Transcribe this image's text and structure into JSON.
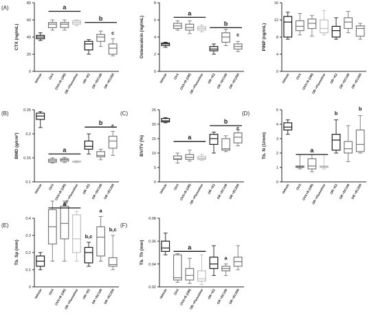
{
  "colors": {
    "dark": "#1a1a1a",
    "mid": "#777777",
    "light": "#bdbdbd",
    "axis": "#222222"
  },
  "chart_data": [
    {
      "id": "A1",
      "panel_label": "(A)",
      "type": "box",
      "ylabel": "CTX (ng/mL)",
      "ylim": [
        0,
        80
      ],
      "yticks": [
        0,
        20,
        40,
        60,
        80
      ],
      "categories": [
        "Vehicle",
        "OVX",
        "OVX+R (OR)",
        "OR +Fluoxetine",
        "OR +E2",
        "OR +EC100",
        "OR +EC200"
      ],
      "shades": [
        "dark",
        "mid",
        "mid",
        "light",
        "dark",
        "mid",
        "mid"
      ],
      "boxes": [
        [
          36,
          38,
          40,
          42,
          45
        ],
        [
          48,
          51,
          55,
          57,
          60
        ],
        [
          48,
          51,
          55,
          57,
          60
        ],
        [
          53,
          55,
          57,
          59,
          60
        ],
        [
          20,
          25,
          32,
          35,
          37
        ],
        [
          29,
          35,
          40,
          43,
          47
        ],
        [
          18,
          20,
          27,
          32,
          38
        ]
      ],
      "annotations": [
        {
          "text": "a",
          "x1": 1,
          "x2": 3,
          "y": 70
        },
        {
          "text": "b",
          "x1": 4,
          "x2": 6,
          "y": 57
        },
        {
          "text": "c",
          "x": 6,
          "y": 42
        }
      ]
    },
    {
      "id": "A2",
      "type": "box",
      "ylabel": "Osteocalcin (ng/mL)",
      "ylim": [
        0,
        8
      ],
      "yticks": [
        0,
        2,
        4,
        6,
        8
      ],
      "categories": [
        "Vehicle",
        "OVX",
        "OVX+R (OR)",
        "OR +Fluoxetine",
        "OR +E2",
        "OR +EC100",
        "OR +EC200"
      ],
      "shades": [
        "dark",
        "mid",
        "mid",
        "light",
        "dark",
        "mid",
        "mid"
      ],
      "boxes": [
        [
          2.8,
          3.0,
          3.2,
          3.3,
          3.4
        ],
        [
          4.8,
          5.0,
          5.3,
          5.6,
          5.9
        ],
        [
          4.4,
          4.8,
          5.1,
          5.5,
          5.9
        ],
        [
          4.6,
          4.8,
          5.0,
          5.2,
          5.4
        ],
        [
          2.0,
          2.4,
          2.6,
          2.9,
          3.2
        ],
        [
          3.0,
          3.4,
          4.0,
          4.5,
          4.9
        ],
        [
          2.3,
          2.6,
          2.9,
          3.2,
          3.5
        ]
      ],
      "annotations": [
        {
          "text": "a",
          "x1": 1,
          "x2": 3,
          "y": 6.3
        },
        {
          "text": "b",
          "x1": 4,
          "x2": 6,
          "y": 5.1
        },
        {
          "text": "c",
          "x": 6,
          "y": 4.0
        }
      ]
    },
    {
      "id": "A3",
      "type": "box",
      "ylabel": "PINP (ng/mL)",
      "ylim": [
        0,
        16
      ],
      "yticks": [
        0,
        4,
        8,
        12,
        16
      ],
      "categories": [
        "Vehicle",
        "OVX",
        "OVX+R (OR)",
        "OR +Fluoxetine",
        "OR +E2",
        "OR +EC100",
        "OR +EC200"
      ],
      "shades": [
        "dark",
        "mid",
        "mid",
        "light",
        "dark",
        "mid",
        "mid"
      ],
      "boxes": [
        [
          7.5,
          8.0,
          11.5,
          12.8,
          13.8
        ],
        [
          8.5,
          9.5,
          10.5,
          11.8,
          13.5
        ],
        [
          8.2,
          10.0,
          11.2,
          12.2,
          13.0
        ],
        [
          8.5,
          9.0,
          10.0,
          12.0,
          14.2
        ],
        [
          7.5,
          8.0,
          9.5,
          10.5,
          12.5
        ],
        [
          9.0,
          10.0,
          11.5,
          12.5,
          14.0
        ],
        [
          7.5,
          8.2,
          10.0,
          10.6,
          11.2
        ]
      ],
      "annotations": []
    },
    {
      "id": "B",
      "panel_label": "(B)",
      "type": "box",
      "ylabel": "BMD (g/cm²)",
      "ylim": [
        0.1,
        0.25
      ],
      "yticks": [
        0.1,
        0.15,
        0.2,
        0.25
      ],
      "categories": [
        "Vehicle",
        "OVX",
        "OVX+R (OR)",
        "OR +Fluoxetine",
        "OR +E2",
        "OR +EC100",
        "OR +EC200"
      ],
      "shades": [
        "dark",
        "mid",
        "mid",
        "light",
        "dark",
        "mid",
        "mid"
      ],
      "boxes": [
        [
          0.213,
          0.23,
          0.237,
          0.243,
          0.246
        ],
        [
          0.139,
          0.141,
          0.144,
          0.147,
          0.15
        ],
        [
          0.14,
          0.143,
          0.146,
          0.148,
          0.151
        ],
        [
          0.14,
          0.141,
          0.142,
          0.143,
          0.144
        ],
        [
          0.158,
          0.168,
          0.174,
          0.185,
          0.2
        ],
        [
          0.146,
          0.152,
          0.155,
          0.163,
          0.168
        ],
        [
          0.155,
          0.17,
          0.185,
          0.195,
          0.205
        ]
      ],
      "annotations": [
        {
          "text": "a",
          "x1": 1,
          "x2": 3,
          "y": 0.158
        },
        {
          "text": "b",
          "x1": 4,
          "x2": 6,
          "y": 0.214
        },
        {
          "text": "c",
          "x": 6,
          "y": 0.212
        }
      ]
    },
    {
      "id": "C",
      "panel_label": "(C)",
      "type": "box",
      "ylabel": "BV/TV (%)",
      "ylim": [
        0,
        25
      ],
      "yticks": [
        0,
        5,
        10,
        15,
        20,
        25
      ],
      "categories": [
        "Vehicle",
        "OVX",
        "OVX+R (OR)",
        "OR +Fluoxetine",
        "OR +E2",
        "OR +EC100",
        "OR +EC200"
      ],
      "shades": [
        "dark",
        "mid",
        "mid",
        "light",
        "dark",
        "mid",
        "mid"
      ],
      "boxes": [
        [
          20.5,
          20.8,
          21.2,
          22.0,
          22.3
        ],
        [
          6.5,
          7.8,
          8.0,
          9.0,
          10.0
        ],
        [
          7.2,
          7.8,
          8.5,
          9.5,
          11.0
        ],
        [
          7.5,
          7.8,
          8.2,
          8.8,
          9.5
        ],
        [
          10.0,
          13.0,
          15.0,
          16.5,
          17.3
        ],
        [
          10.5,
          11.0,
          11.5,
          15.0,
          16.0
        ],
        [
          12.5,
          13.5,
          15.5,
          17.0,
          18.0
        ]
      ],
      "annotations": [
        {
          "text": "a",
          "x1": 1,
          "x2": 3,
          "y": 14.0
        },
        {
          "text": "b",
          "x1": 4,
          "x2": 6,
          "y": 19.5
        },
        {
          "text": "c",
          "x": 6,
          "y": 17.8
        }
      ]
    },
    {
      "id": "D",
      "panel_label": "(D)",
      "type": "box",
      "ylabel": "Tb. N (1/mm)",
      "ylim": [
        0,
        5
      ],
      "yticks": [
        0,
        1,
        2,
        3,
        4,
        5
      ],
      "categories": [
        "Vehicle",
        "OVX",
        "OVX+R (OR)",
        "OR +Fluoxetine",
        "OR +E2",
        "OR +EC100",
        "OR +EC200"
      ],
      "shades": [
        "dark",
        "mid",
        "mid",
        "light",
        "dark",
        "mid",
        "mid"
      ],
      "boxes": [
        [
          3.3,
          3.6,
          3.8,
          4.1,
          4.3
        ],
        [
          0.9,
          1.0,
          1.05,
          1.1,
          1.9
        ],
        [
          0.7,
          0.9,
          1.1,
          1.6,
          1.9
        ],
        [
          0.9,
          1.0,
          1.05,
          1.1,
          1.9
        ],
        [
          2.0,
          2.2,
          2.9,
          3.3,
          4.3
        ],
        [
          1.4,
          2.0,
          2.3,
          2.8,
          3.9
        ],
        [
          2.0,
          2.1,
          2.6,
          3.6,
          4.6
        ]
      ],
      "annotations": [
        {
          "text": "a",
          "x1": 1,
          "x2": 3,
          "y": 1.9
        },
        {
          "text": "b",
          "x": 4,
          "y": 4.6
        },
        {
          "text": "b",
          "x": 6,
          "y": 4.9
        }
      ]
    },
    {
      "id": "E",
      "panel_label": "(E)",
      "type": "box",
      "ylabel": "Tb. Sp (mm)",
      "ylim": [
        0,
        0.4
      ],
      "yticks": [
        0,
        0.1,
        0.2,
        0.3,
        0.4
      ],
      "categories": [
        "Vehicle",
        "OVX",
        "OVX+R (OR)",
        "OR +Fluoxetine",
        "OR +E2",
        "OR +EC100",
        "OR +EC200"
      ],
      "shades": [
        "dark",
        "mid",
        "mid",
        "light",
        "dark",
        "mid",
        "mid"
      ],
      "boxes": [
        [
          0.1,
          0.12,
          0.15,
          0.18,
          0.2
        ],
        [
          0.15,
          0.25,
          0.35,
          0.45,
          0.5
        ],
        [
          0.15,
          0.28,
          0.37,
          0.47,
          0.5
        ],
        [
          0.15,
          0.2,
          0.28,
          0.42,
          0.44
        ],
        [
          0.12,
          0.14,
          0.2,
          0.23,
          0.26
        ],
        [
          0.15,
          0.18,
          0.29,
          0.35,
          0.41
        ],
        [
          0.1,
          0.12,
          0.13,
          0.17,
          0.3
        ]
      ],
      "annotations": [
        {
          "text": "a",
          "x1": 1,
          "x2": 3,
          "y": 0.46
        },
        {
          "text": "b,c",
          "x": 4,
          "y": 0.28
        },
        {
          "text": "a",
          "x": 5,
          "y": 0.43
        },
        {
          "text": "b,c",
          "x": 6,
          "y": 0.32
        }
      ]
    },
    {
      "id": "F",
      "panel_label": "(F)",
      "type": "box",
      "ylabel": "Tb. Th (mm)",
      "ylim": [
        0.02,
        0.08
      ],
      "yticks": [
        0.02,
        0.04,
        0.06,
        0.08
      ],
      "categories": [
        "Vehicle",
        "OVX",
        "OVX+R (OR)",
        "OR +Fluoxetine",
        "OR +E2",
        "OR +EC100",
        "OR +EC200"
      ],
      "shades": [
        "dark",
        "mid",
        "mid",
        "light",
        "dark",
        "mid",
        "mid"
      ],
      "boxes": [
        [
          0.048,
          0.051,
          0.054,
          0.06,
          0.067
        ],
        [
          0.024,
          0.026,
          0.028,
          0.048,
          0.049
        ],
        [
          0.023,
          0.026,
          0.03,
          0.036,
          0.045
        ],
        [
          0.022,
          0.025,
          0.027,
          0.034,
          0.048
        ],
        [
          0.03,
          0.036,
          0.04,
          0.046,
          0.056
        ],
        [
          0.03,
          0.034,
          0.036,
          0.038,
          0.04
        ],
        [
          0.035,
          0.038,
          0.042,
          0.046,
          0.056
        ]
      ],
      "annotations": [
        {
          "text": "a",
          "x1": 1,
          "x2": 3,
          "y": 0.051
        },
        {
          "text": "a",
          "x": 5,
          "y": 0.043
        }
      ]
    }
  ]
}
